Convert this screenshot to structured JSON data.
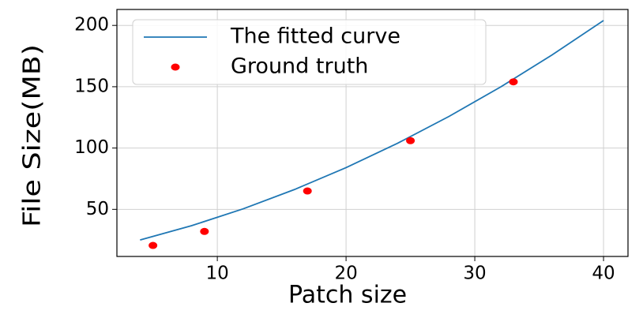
{
  "chart_data": {
    "type": "line",
    "x_label": "Patch size",
    "y_label": "File Size(MB)",
    "series": [
      {
        "name": "The fitted curve",
        "type": "line",
        "color": "#1f77b4",
        "x": [
          4,
          8,
          12,
          16,
          20,
          24,
          28,
          32,
          36,
          40
        ],
        "values": [
          25.0,
          36.7,
          50.4,
          66.2,
          84.0,
          103.9,
          125.8,
          149.8,
          175.9,
          204.0
        ]
      },
      {
        "name": "Ground truth",
        "type": "scatter",
        "color": "#ff0000",
        "x": [
          5,
          9,
          17,
          25,
          33
        ],
        "values": [
          20.6,
          32,
          65,
          106,
          154
        ]
      }
    ],
    "xlim": [
      2.2,
      41.9
    ],
    "ylim": [
      11.6,
      213
    ],
    "xticks": [
      10,
      20,
      30,
      40
    ],
    "yticks": [
      50,
      100,
      150,
      200
    ],
    "grid": true,
    "legend": "upper left"
  }
}
